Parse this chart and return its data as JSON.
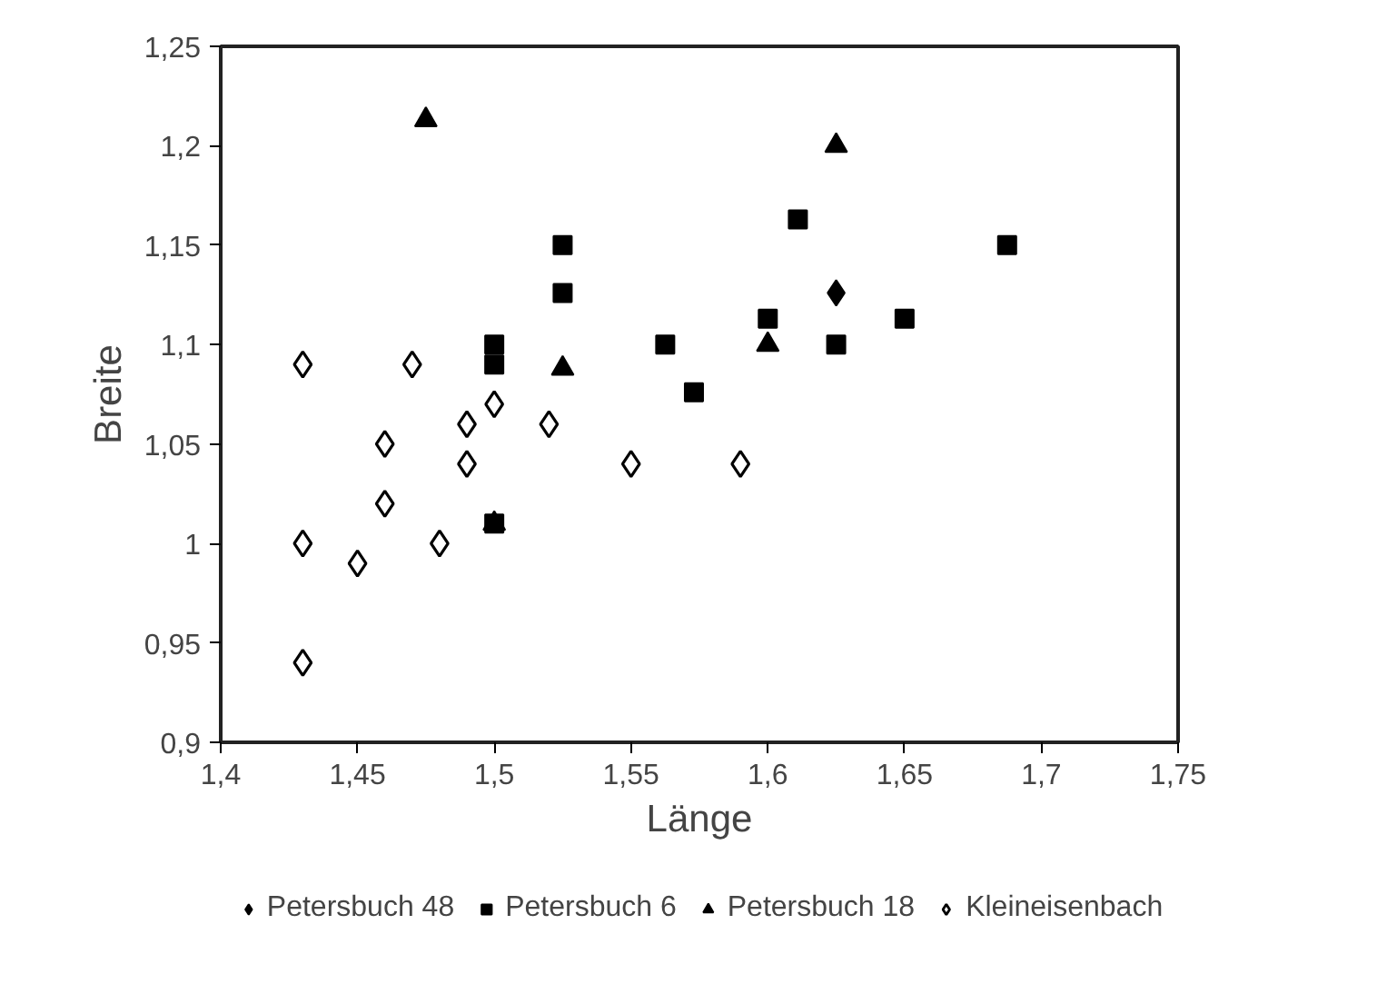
{
  "chart_data": {
    "type": "scatter",
    "xlabel": "Länge",
    "ylabel": "Breite",
    "xlim": [
      1.4,
      1.75
    ],
    "ylim": [
      0.9,
      1.25
    ],
    "xticks": [
      {
        "value": 1.4,
        "label": "1,4"
      },
      {
        "value": 1.45,
        "label": "1,45"
      },
      {
        "value": 1.5,
        "label": "1,5"
      },
      {
        "value": 1.55,
        "label": "1,55"
      },
      {
        "value": 1.6,
        "label": "1,6"
      },
      {
        "value": 1.65,
        "label": "1,65"
      },
      {
        "value": 1.7,
        "label": "1,7"
      },
      {
        "value": 1.75,
        "label": "1,75"
      }
    ],
    "yticks": [
      {
        "value": 0.9,
        "label": "0,9"
      },
      {
        "value": 0.95,
        "label": "0,95"
      },
      {
        "value": 1,
        "label": "1"
      },
      {
        "value": 1.05,
        "label": "1,05"
      },
      {
        "value": 1.1,
        "label": "1,1"
      },
      {
        "value": 1.15,
        "label": "1,15"
      },
      {
        "value": 1.2,
        "label": "1,2"
      },
      {
        "value": 1.25,
        "label": "1,25"
      }
    ],
    "grid": false,
    "legend": "bottom",
    "series": [
      {
        "name": "Petersbuch 48",
        "color": "#000000",
        "marker": "diamond",
        "x": [
          1.625
        ],
        "values": [
          1.126
        ]
      },
      {
        "name": "Petersbuch 6",
        "color": "#000000",
        "marker": "square",
        "x": [
          1.5,
          1.5,
          1.5,
          1.525,
          1.525,
          1.5625,
          1.573,
          1.6,
          1.611,
          1.625,
          1.65,
          1.6875
        ],
        "values": [
          1.1,
          1.09,
          1.01,
          1.15,
          1.126,
          1.1,
          1.076,
          1.113,
          1.163,
          1.1,
          1.113,
          1.15
        ]
      },
      {
        "name": "Petersbuch 18",
        "color": "#000000",
        "marker": "triangle",
        "x": [
          1.475,
          1.5,
          1.525,
          1.6,
          1.625
        ],
        "values": [
          1.213,
          1.01,
          1.088,
          1.1,
          1.2
        ]
      },
      {
        "name": "Kleineisenbach",
        "color": "#ffffff",
        "marker": "diamond",
        "x": [
          1.43,
          1.43,
          1.43,
          1.45,
          1.46,
          1.46,
          1.47,
          1.48,
          1.49,
          1.49,
          1.5,
          1.52,
          1.55,
          1.59
        ],
        "values": [
          1.09,
          1.0,
          0.94,
          0.99,
          1.05,
          1.02,
          1.09,
          1.0,
          1.06,
          1.04,
          1.07,
          1.06,
          1.04,
          1.04
        ]
      }
    ]
  }
}
